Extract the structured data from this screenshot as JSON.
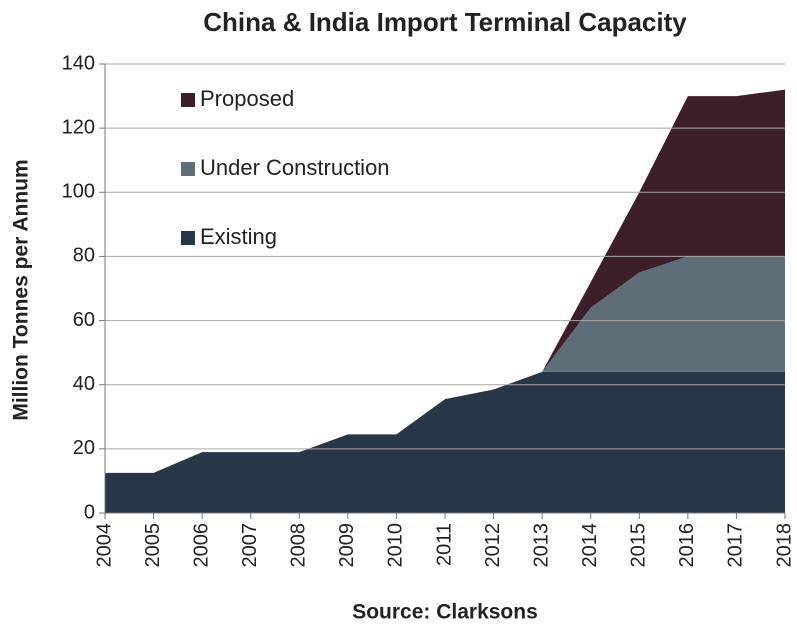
{
  "chart_data": {
    "type": "stacked_area",
    "title": "China & India Import Terminal Capacity",
    "ylabel": "Million Tonnes per Annum",
    "source": "Source: Clarksons",
    "categories": [
      "2004",
      "2005",
      "2006",
      "2007",
      "2008",
      "2009",
      "2010",
      "2011",
      "2012",
      "2013",
      "2014",
      "2015",
      "2016",
      "2017",
      "2018"
    ],
    "series": [
      {
        "name": "Existing",
        "color": "#283747",
        "values": [
          12.5,
          12.5,
          19,
          19,
          19,
          24.5,
          24.5,
          35.5,
          38.5,
          44,
          44,
          44,
          44,
          44,
          44
        ]
      },
      {
        "name": "Under Construction",
        "color": "#5e6e78",
        "values": [
          0,
          0,
          0,
          0,
          0,
          0,
          0,
          0,
          0,
          0,
          20,
          31,
          36,
          36,
          36
        ]
      },
      {
        "name": "Proposed",
        "color": "#3d1f2a",
        "values": [
          0,
          0,
          0,
          0,
          0,
          0,
          0,
          0,
          0,
          0,
          8,
          25,
          50,
          50,
          52
        ]
      }
    ],
    "ylim": [
      0,
      140
    ],
    "yticks": [
      0,
      20,
      40,
      60,
      80,
      100,
      120,
      140
    ],
    "grid": true
  }
}
